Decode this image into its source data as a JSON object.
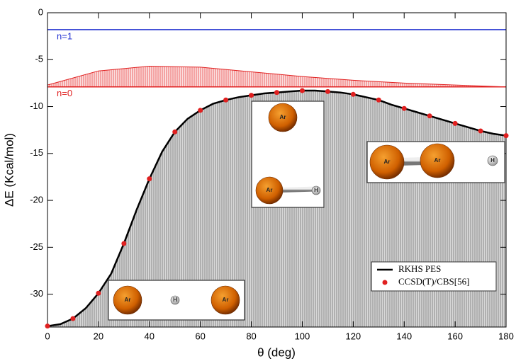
{
  "chart_data": {
    "type": "line",
    "x_label": "θ (deg)",
    "y_label": "ΔE (Kcal/mol)",
    "xlim": [
      0,
      180
    ],
    "ylim": [
      -33.5,
      0
    ],
    "xticks": [
      0,
      20,
      40,
      60,
      80,
      100,
      120,
      140,
      160,
      180
    ],
    "yticks": [
      0,
      -5,
      -10,
      -15,
      -20,
      -25,
      -30
    ],
    "legend": "lower right",
    "series": [
      {
        "name": "RKHS PES",
        "color": "#000000",
        "style": "line",
        "fill": "#999999",
        "x": [
          0,
          5,
          10,
          15,
          20,
          25,
          30,
          35,
          40,
          45,
          50,
          55,
          60,
          65,
          70,
          75,
          80,
          85,
          90,
          95,
          100,
          105,
          110,
          115,
          120,
          125,
          130,
          135,
          140,
          145,
          150,
          155,
          160,
          165,
          170,
          175,
          180
        ],
        "values": [
          -33.4,
          -33.2,
          -32.6,
          -31.5,
          -29.9,
          -27.8,
          -24.6,
          -21.0,
          -17.7,
          -14.8,
          -12.7,
          -11.3,
          -10.4,
          -9.7,
          -9.3,
          -9.0,
          -8.8,
          -8.6,
          -8.5,
          -8.4,
          -8.3,
          -8.3,
          -8.4,
          -8.5,
          -8.7,
          -9.0,
          -9.3,
          -9.8,
          -10.2,
          -10.6,
          -11.0,
          -11.4,
          -11.8,
          -12.2,
          -12.6,
          -12.9,
          -13.1
        ]
      },
      {
        "name": "CCSD(T)/CBS[56]",
        "color": "#e02020",
        "style": "dots",
        "x": [
          0,
          10,
          20,
          30,
          40,
          50,
          60,
          70,
          80,
          90,
          100,
          110,
          120,
          130,
          140,
          150,
          160,
          170,
          180
        ],
        "values": [
          -33.4,
          -32.6,
          -29.9,
          -24.6,
          -17.7,
          -12.7,
          -10.4,
          -9.3,
          -8.8,
          -8.5,
          -8.3,
          -8.4,
          -8.7,
          -9.3,
          -10.2,
          -11.0,
          -11.8,
          -12.6,
          -13.1
        ]
      }
    ],
    "levels": [
      {
        "label": "n=1",
        "value": -1.8,
        "color": "#2030d0"
      },
      {
        "label": "n=0",
        "value": -7.9,
        "color": "#e02020"
      }
    ],
    "wavefunction": {
      "color": "#e02020",
      "x": [
        0,
        20,
        40,
        60,
        80,
        100,
        120,
        140,
        160,
        180
      ],
      "values": [
        -7.7,
        -6.2,
        -5.7,
        -5.8,
        -6.3,
        -6.8,
        -7.2,
        -7.5,
        -7.7,
        -7.9
      ]
    },
    "insets": [
      {
        "atoms": [
          "Ar",
          "H",
          "Ar"
        ]
      },
      {
        "atoms": [
          "Ar",
          "Ar",
          "H"
        ]
      },
      {
        "atoms": [
          "Ar",
          "Ar",
          "H"
        ]
      }
    ]
  }
}
